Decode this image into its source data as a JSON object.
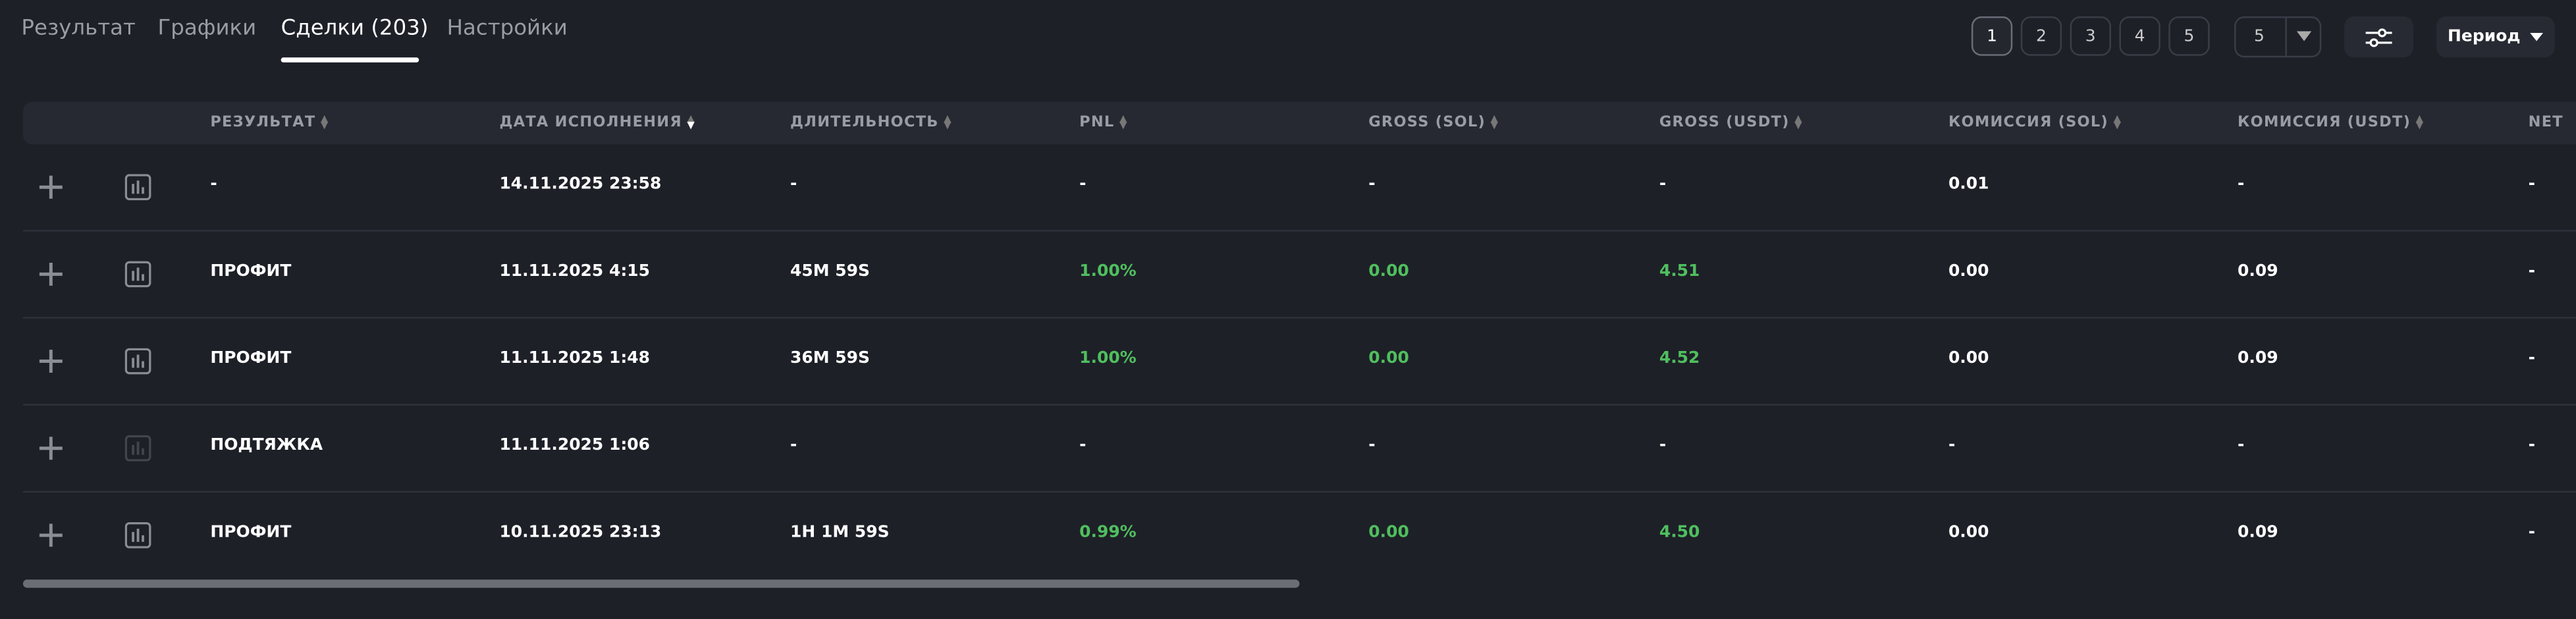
{
  "tabs": [
    "Результат",
    "Графики",
    "Сделки (203)",
    "Настройки"
  ],
  "pagination": {
    "pages": [
      "1",
      "2",
      "3",
      "4",
      "5"
    ],
    "per_page": "5"
  },
  "period_button": "Период",
  "table": {
    "headers": [
      "РЕЗУЛЬТАТ",
      "ДАТА ИСПОЛНЕНИЯ",
      "ДЛИТЕЛЬНОСТЬ",
      "PNL",
      "GROSS (SOL)",
      "GROSS (USDT)",
      "КОМИССИЯ (SOL)",
      "КОМИССИЯ (USDT)",
      "NET"
    ],
    "rows": [
      [
        "-",
        "14.11.2025 23:58",
        "-",
        "-",
        "-",
        "-",
        "0.01",
        "-",
        "-"
      ],
      [
        "ПРОФИТ",
        "11.11.2025 4:15",
        "45M 59S",
        "1.00%",
        "0.00",
        "4.51",
        "0.00",
        "0.09",
        "-"
      ],
      [
        "ПРОФИТ",
        "11.11.2025 1:48",
        "36M 59S",
        "1.00%",
        "0.00",
        "4.52",
        "0.00",
        "0.09",
        "-"
      ],
      [
        "ПОДТЯЖКА",
        "11.11.2025 1:06",
        "-",
        "-",
        "-",
        "-",
        "-",
        "-",
        "-"
      ],
      [
        "ПРОФИТ",
        "10.11.2025 23:13",
        "1H 1M 59S",
        "0.99%",
        "0.00",
        "4.50",
        "0.00",
        "0.09",
        "-"
      ]
    ]
  }
}
